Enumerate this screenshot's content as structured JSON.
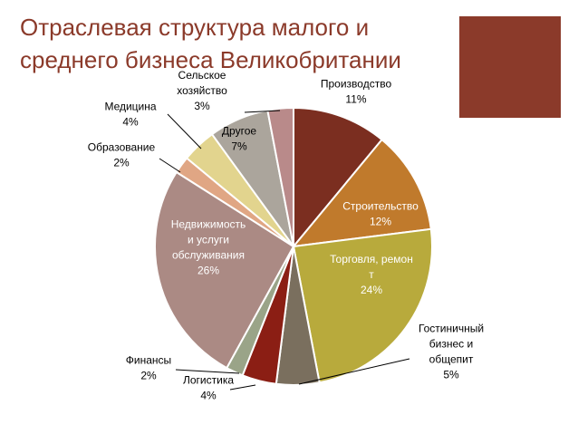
{
  "slide": {
    "title": "Отраслевая структура малого и\nсреднего бизнеса Великобритании",
    "accent_color": "#8b3a2a",
    "title_color": "#8b3a2a"
  },
  "chart_data": {
    "type": "pie",
    "title": "",
    "legend": "none",
    "slices": [
      {
        "name": "Производство",
        "label_lines": [
          "Производство",
          "11%"
        ],
        "value": 11,
        "color": "#7b2e20"
      },
      {
        "name": "Строительство",
        "label_lines": [
          "Строительство",
          "12%"
        ],
        "value": 12,
        "color": "#c07a2c"
      },
      {
        "name": "Торговля, ремонт",
        "label_lines": [
          "Торговля, ремон",
          "т",
          "24%"
        ],
        "value": 24,
        "color": "#b8aa3c"
      },
      {
        "name": "Гостиничный бизнес и общепит",
        "label_lines": [
          "Гостиничный",
          "бизнес и",
          "общепит",
          "5%"
        ],
        "value": 5,
        "color": "#7a6f5e"
      },
      {
        "name": "Логистика",
        "label_lines": [
          "Логистика",
          "4%"
        ],
        "value": 4,
        "color": "#8b1e14"
      },
      {
        "name": "Финансы",
        "label_lines": [
          "Финансы",
          "2%"
        ],
        "value": 2,
        "color": "#9aa488"
      },
      {
        "name": "Недвижимость и услуги обслуживания",
        "label_lines": [
          "Недвижимость",
          "и услуги",
          "обслуживания",
          "26%"
        ],
        "value": 26,
        "color": "#ab8a84"
      },
      {
        "name": "Образование",
        "label_lines": [
          "Образование",
          "2%"
        ],
        "value": 2,
        "color": "#e0a684"
      },
      {
        "name": "Медицина",
        "label_lines": [
          "Медицина",
          "4%"
        ],
        "value": 4,
        "color": "#e2d48e"
      },
      {
        "name": "Другое",
        "label_lines": [
          "Другое",
          "7%"
        ],
        "value": 7,
        "color": "#aba59c"
      },
      {
        "name": "Сельское хозяйство",
        "label_lines": [
          "Сельское",
          "хозяйство",
          "3%"
        ],
        "value": 3,
        "color": "#b98a8a"
      }
    ]
  }
}
